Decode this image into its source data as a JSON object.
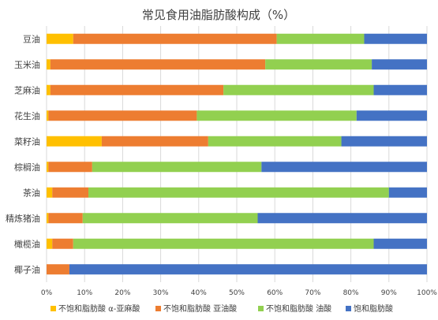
{
  "chart_data": {
    "type": "bar",
    "orientation": "horizontal",
    "stacked": "percent",
    "title": "常见食用油脂肪酸构成（%）",
    "categories": [
      "豆油",
      "玉米油",
      "芝麻油",
      "花生油",
      "菜籽油",
      "棕榈油",
      "茶油",
      "精炼猪油",
      "橄榄油",
      "椰子油"
    ],
    "series": [
      {
        "name": "不饱和脂肪酸 α-亚麻酸",
        "color": "#ffc000",
        "values": [
          7,
          1,
          1,
          0.5,
          14.5,
          0.5,
          1.5,
          0.5,
          1.5,
          0
        ]
      },
      {
        "name": "不饱和脂肪酸 亚油酸",
        "color": "#ed7d31",
        "values": [
          53.5,
          56.5,
          45.5,
          39,
          28,
          11.5,
          9.5,
          9,
          5.5,
          6
        ]
      },
      {
        "name": "不饱和脂肪酸 油酸",
        "color": "#92d050",
        "values": [
          23,
          28,
          39.5,
          42,
          35,
          44.5,
          79,
          46,
          79,
          0
        ]
      },
      {
        "name": "饱和脂肪酸",
        "color": "#4472c4",
        "values": [
          16.5,
          14.5,
          14,
          18.5,
          22.5,
          43.5,
          10,
          44.5,
          14,
          94
        ]
      }
    ],
    "xlim": [
      0,
      100
    ],
    "xticks": [
      "0%",
      "10%",
      "20%",
      "30%",
      "40%",
      "50%",
      "60%",
      "70%",
      "80%",
      "90%",
      "100%"
    ],
    "grid": true,
    "legend_position": "bottom"
  }
}
